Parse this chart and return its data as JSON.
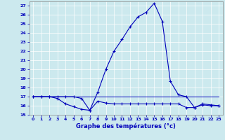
{
  "x_label": "Graphe des températures (°c)",
  "xlim": [
    -0.5,
    23.5
  ],
  "ylim": [
    15,
    27.5
  ],
  "yticks": [
    15,
    16,
    17,
    18,
    19,
    20,
    21,
    22,
    23,
    24,
    25,
    26,
    27
  ],
  "xticks": [
    0,
    1,
    2,
    3,
    4,
    5,
    6,
    7,
    8,
    9,
    10,
    11,
    12,
    13,
    14,
    15,
    16,
    17,
    18,
    19,
    20,
    21,
    22,
    23
  ],
  "bg_color": "#cce9ee",
  "line_color": "#0000bb",
  "series_flat": {
    "x": [
      0,
      23
    ],
    "y": [
      17.0,
      17.0
    ]
  },
  "series_temp": {
    "x": [
      0,
      1,
      2,
      3,
      4,
      5,
      6,
      7,
      8,
      9,
      10,
      11,
      12,
      13,
      14,
      15,
      16,
      17,
      18,
      19,
      20,
      21,
      22,
      23
    ],
    "y": [
      17.0,
      17.0,
      17.0,
      17.0,
      17.0,
      17.0,
      16.8,
      15.5,
      17.5,
      20.0,
      22.0,
      23.3,
      24.7,
      25.8,
      26.3,
      27.3,
      25.3,
      18.7,
      17.2,
      17.0,
      15.8,
      16.2,
      16.1,
      16.0
    ]
  },
  "series_dew": {
    "x": [
      0,
      1,
      2,
      3,
      4,
      5,
      6,
      7,
      8,
      9,
      10,
      11,
      12,
      13,
      14,
      15,
      16,
      17,
      18,
      19,
      20,
      21,
      22,
      23
    ],
    "y": [
      17.0,
      17.0,
      17.0,
      16.8,
      16.2,
      15.9,
      15.6,
      15.5,
      16.5,
      16.3,
      16.2,
      16.2,
      16.2,
      16.2,
      16.2,
      16.2,
      16.2,
      16.2,
      16.2,
      15.8,
      15.8,
      16.1,
      16.0,
      16.0
    ]
  }
}
